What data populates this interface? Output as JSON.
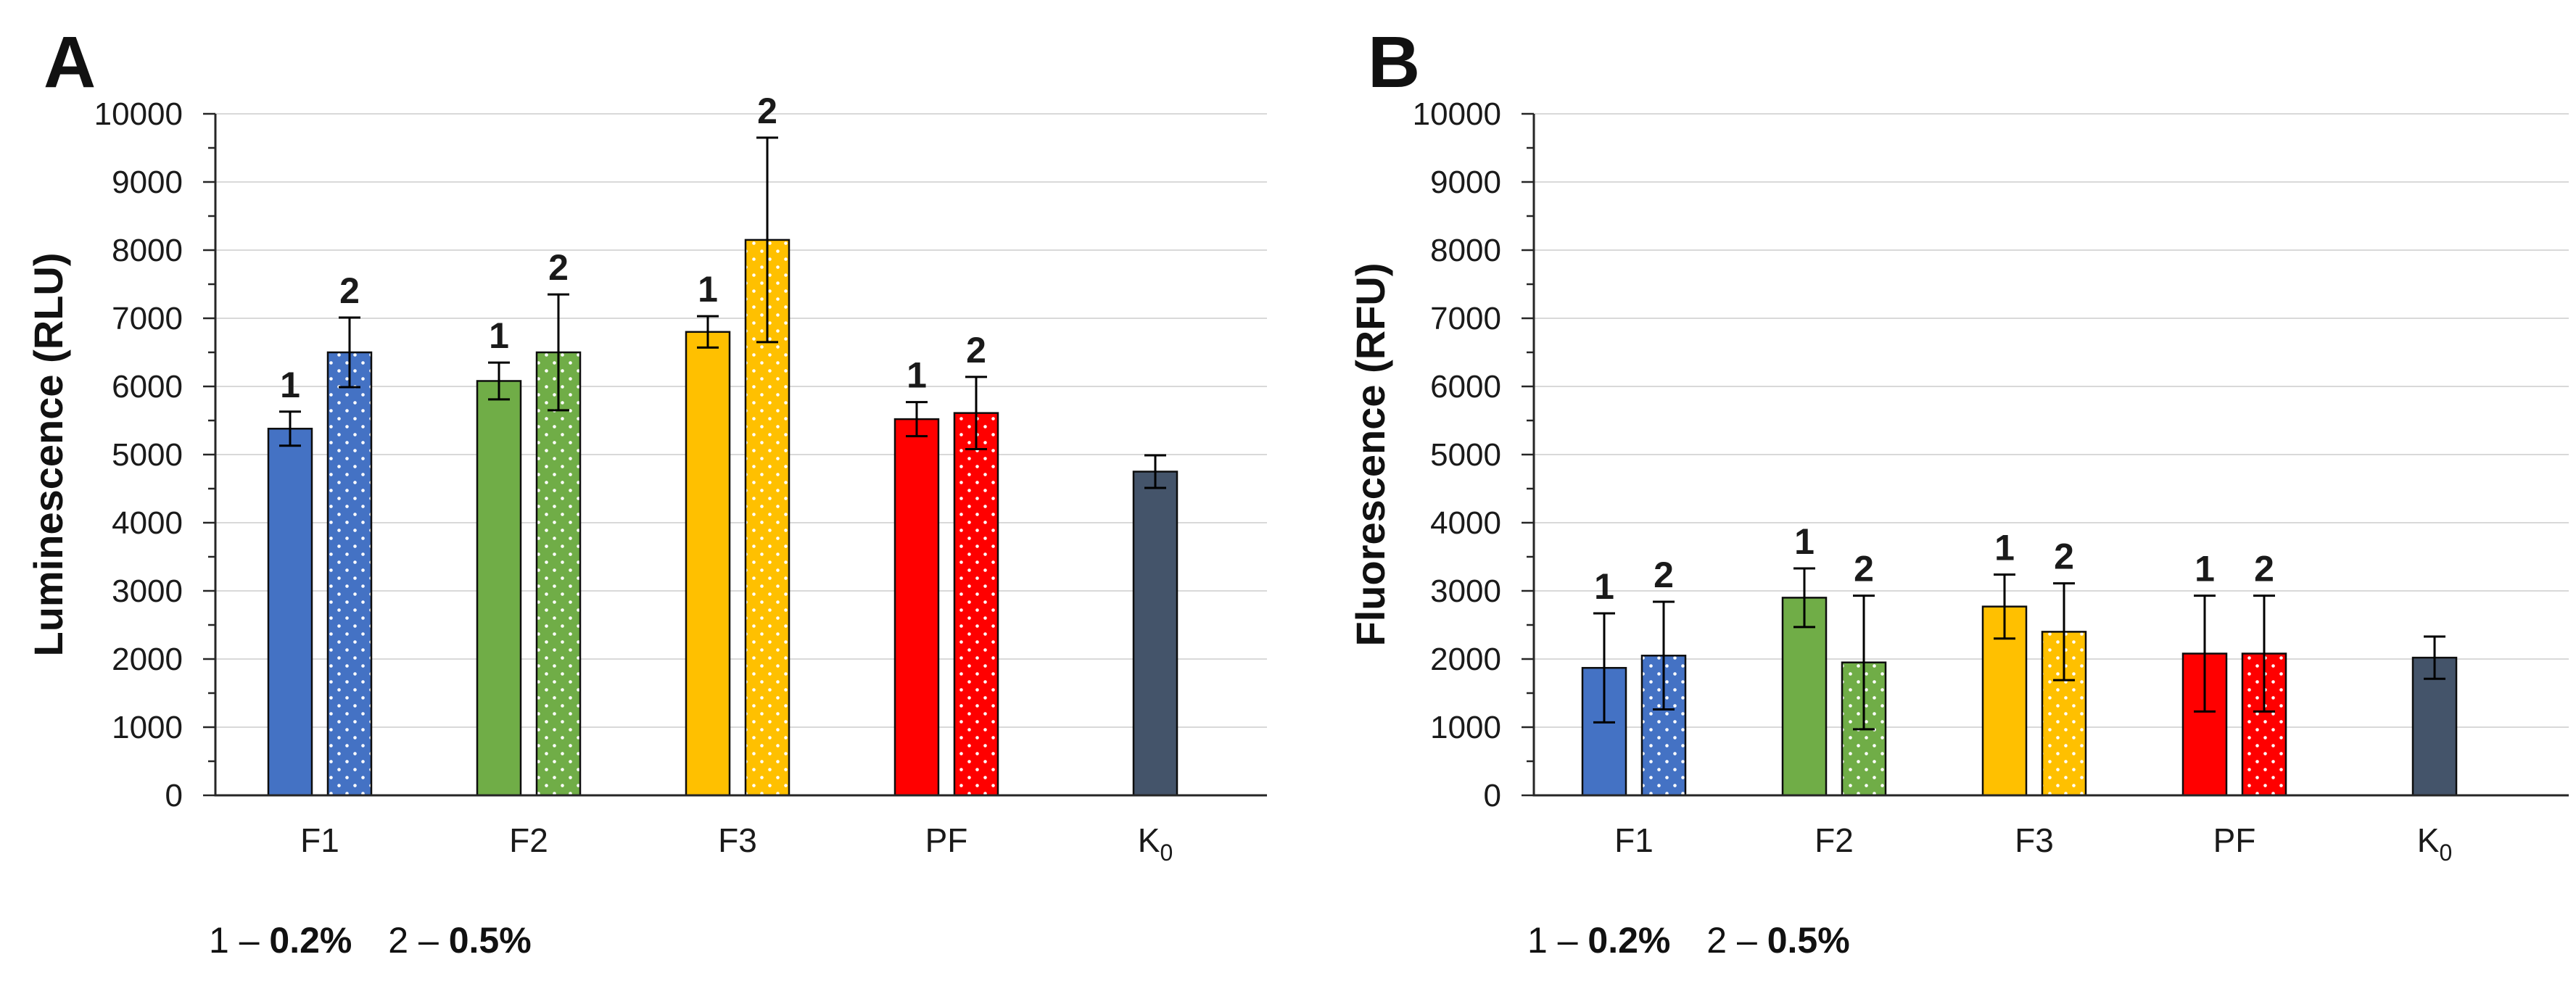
{
  "page": {
    "background": "#FFFFFF"
  },
  "colors": {
    "grid": "#D9D9D9",
    "axis": "#262626",
    "bar_outline": "#0D0D0D",
    "error_bar": "#000000",
    "text": "#1A1A1A",
    "dot": "#FFFFFF",
    "blue": "#4472C4",
    "green": "#70AD47",
    "yellow": "#FFC000",
    "red": "#FF0000",
    "slate": "#44546A"
  },
  "chart_data": [
    {
      "type": "bar",
      "panel_label": "A",
      "title": "",
      "xlabel": "",
      "ylabel": "Luminescence (RLU)",
      "ylim": [
        0,
        10000
      ],
      "ytick_step": 1000,
      "minor_tick_step": 500,
      "ytick_labels": [
        "0",
        "1000",
        "2000",
        "3000",
        "4000",
        "5000",
        "6000",
        "7000",
        "8000",
        "9000",
        "10000"
      ],
      "grid": true,
      "legend_position": "bottom-left",
      "legend": {
        "separator": " – ",
        "items": [
          {
            "key": "1",
            "value": "0.2%"
          },
          {
            "key": "2",
            "value": "0.5%"
          }
        ]
      },
      "categories": [
        {
          "label": "F1",
          "sub": "",
          "color": "#4472C4",
          "bars": [
            {
              "tag": "1",
              "value": 5380,
              "error": 250,
              "pattern": "solid"
            },
            {
              "tag": "2",
              "value": 6500,
              "error": 510,
              "pattern": "dotted"
            }
          ]
        },
        {
          "label": "F2",
          "sub": "",
          "color": "#70AD47",
          "bars": [
            {
              "tag": "1",
              "value": 6080,
              "error": 270,
              "pattern": "solid"
            },
            {
              "tag": "2",
              "value": 6500,
              "error": 850,
              "pattern": "dotted"
            }
          ]
        },
        {
          "label": "F3",
          "sub": "",
          "color": "#FFC000",
          "bars": [
            {
              "tag": "1",
              "value": 6800,
              "error": 230,
              "pattern": "solid"
            },
            {
              "tag": "2",
              "value": 8150,
              "error": 1500,
              "pattern": "dotted"
            }
          ]
        },
        {
          "label": "PF",
          "sub": "",
          "color": "#FF0000",
          "bars": [
            {
              "tag": "1",
              "value": 5520,
              "error": 250,
              "pattern": "solid"
            },
            {
              "tag": "2",
              "value": 5610,
              "error": 530,
              "pattern": "dotted"
            }
          ]
        },
        {
          "label": "K",
          "sub": "0",
          "color": "#44546A",
          "bars": [
            {
              "tag": "",
              "value": 4750,
              "error": 240,
              "pattern": "solid"
            }
          ]
        }
      ]
    },
    {
      "type": "bar",
      "panel_label": "B",
      "title": "",
      "xlabel": "",
      "ylabel": "Fluorescence (RFU)",
      "ylim": [
        0,
        10000
      ],
      "ytick_step": 1000,
      "minor_tick_step": 500,
      "ytick_labels": [
        "0",
        "1000",
        "2000",
        "3000",
        "4000",
        "5000",
        "6000",
        "7000",
        "8000",
        "9000",
        "10000"
      ],
      "grid": true,
      "legend_position": "bottom-left",
      "legend": {
        "separator": " – ",
        "items": [
          {
            "key": "1",
            "value": "0.2%"
          },
          {
            "key": "2",
            "value": "0.5%"
          }
        ]
      },
      "categories": [
        {
          "label": "F1",
          "sub": "",
          "color": "#4472C4",
          "bars": [
            {
              "tag": "1",
              "value": 1870,
              "error": 800,
              "pattern": "solid"
            },
            {
              "tag": "2",
              "value": 2050,
              "error": 790,
              "pattern": "dotted"
            }
          ]
        },
        {
          "label": "F2",
          "sub": "",
          "color": "#70AD47",
          "bars": [
            {
              "tag": "1",
              "value": 2900,
              "error": 430,
              "pattern": "solid"
            },
            {
              "tag": "2",
              "value": 1950,
              "error": 980,
              "pattern": "dotted"
            }
          ]
        },
        {
          "label": "F3",
          "sub": "",
          "color": "#FFC000",
          "bars": [
            {
              "tag": "1",
              "value": 2770,
              "error": 470,
              "pattern": "solid"
            },
            {
              "tag": "2",
              "value": 2400,
              "error": 710,
              "pattern": "dotted"
            }
          ]
        },
        {
          "label": "PF",
          "sub": "",
          "color": "#FF0000",
          "bars": [
            {
              "tag": "1",
              "value": 2080,
              "error": 850,
              "pattern": "solid"
            },
            {
              "tag": "2",
              "value": 2080,
              "error": 850,
              "pattern": "dotted"
            }
          ]
        },
        {
          "label": "K",
          "sub": "0",
          "color": "#44546A",
          "bars": [
            {
              "tag": "",
              "value": 2020,
              "error": 310,
              "pattern": "solid"
            }
          ]
        }
      ]
    }
  ]
}
